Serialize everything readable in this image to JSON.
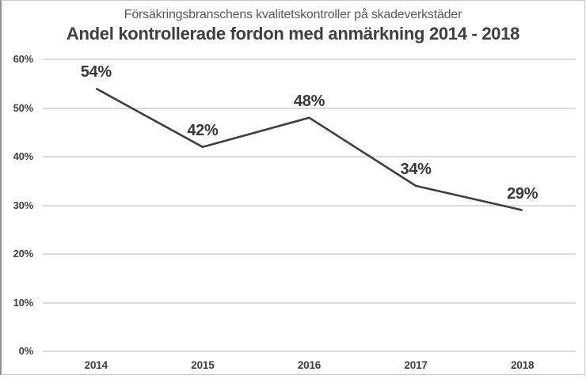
{
  "chart_data": {
    "type": "line",
    "title": "Försäkringsbranschens kvalitetskontroller på skadeverkstäder",
    "subtitle": "Andel kontrollerade fordon med anmärkning 2014 - 2018",
    "categories": [
      "2014",
      "2015",
      "2016",
      "2017",
      "2018"
    ],
    "series": [
      {
        "name": "Andel kontrollerade fordon med anmärkning",
        "values": [
          54,
          42,
          48,
          34,
          29
        ],
        "data_labels": [
          "54%",
          "42%",
          "48%",
          "34%",
          "29%"
        ]
      }
    ],
    "xlabel": "",
    "ylabel": "",
    "ylim": [
      0,
      60
    ],
    "yticks": [
      0,
      10,
      20,
      30,
      40,
      50,
      60
    ],
    "ytick_labels": [
      "0%",
      "10%",
      "20%",
      "30%",
      "40%",
      "50%",
      "60%"
    ],
    "grid": "horizontal",
    "legend": "none",
    "markers": "none",
    "colors": {
      "line": "#3f3f3f",
      "gridline": "#dcdcdc",
      "axis_text": "#404040",
      "data_label_text": "#383838",
      "title_text": "#595959",
      "subtitle_text": "#3f3f3f",
      "background": "#ffffff"
    }
  }
}
